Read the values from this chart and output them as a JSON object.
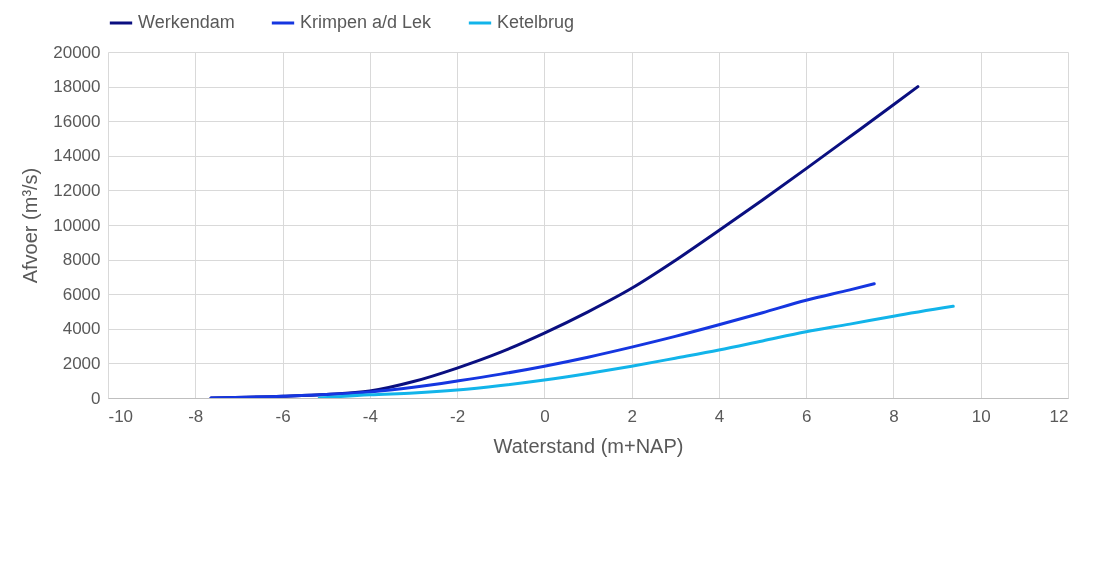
{
  "chart_data": {
    "type": "line",
    "xlabel": "Waterstand (m+NAP)",
    "ylabel": "Afvoer (m³/s)",
    "xlim": [
      -10,
      12
    ],
    "xticks": [
      -10,
      -8,
      -6,
      -4,
      -2,
      0,
      2,
      4,
      6,
      8,
      10,
      12
    ],
    "ylim": [
      0,
      20000
    ],
    "yticks": [
      0,
      2000,
      4000,
      6000,
      8000,
      10000,
      12000,
      14000,
      16000,
      18000,
      20000
    ],
    "grid": true,
    "legend": "top",
    "marker": "none",
    "line_style": "solid",
    "series": [
      {
        "name": "Werkendam",
        "color": "#0a0f80",
        "x": [
          -7.64,
          -6,
          -5,
          -4,
          -3,
          -2,
          -1,
          0,
          1,
          2,
          3,
          4,
          5,
          6,
          7,
          8,
          8.56
        ],
        "values": [
          0,
          100,
          200,
          400,
          950,
          1730,
          2650,
          3750,
          4980,
          6340,
          7950,
          9680,
          11450,
          13260,
          15100,
          16950,
          18000
        ]
      },
      {
        "name": "Krimpen a/d Lek",
        "color": "#1536e0",
        "x": [
          -7.64,
          -6,
          -5,
          -4,
          -3,
          -2,
          -1,
          0,
          1,
          2,
          3,
          4,
          5,
          6,
          7,
          7.56
        ],
        "values": [
          0,
          100,
          200,
          350,
          620,
          980,
          1380,
          1840,
          2360,
          2940,
          3560,
          4230,
          4930,
          5650,
          6250,
          6600
        ]
      },
      {
        "name": "Ketelbrug",
        "color": "#12b4ea",
        "x": [
          -5.16,
          -4,
          -3,
          -2,
          -1,
          0,
          1,
          2,
          3,
          4,
          5,
          6,
          7,
          8,
          9.37
        ],
        "values": [
          0,
          190,
          290,
          460,
          720,
          1040,
          1420,
          1840,
          2300,
          2770,
          3300,
          3830,
          4270,
          4730,
          5300
        ]
      }
    ]
  }
}
